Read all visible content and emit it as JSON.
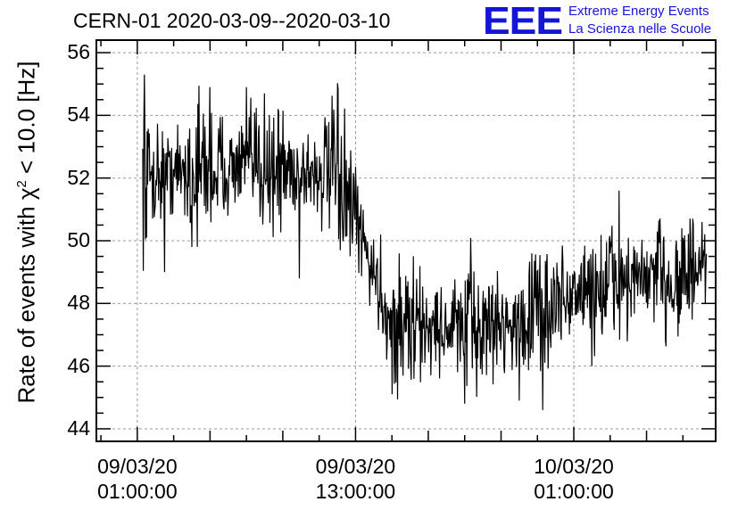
{
  "header": {
    "title": "CERN-01 2020-03-09--2020-03-10",
    "logo_text": "EEE",
    "logo_line1": "Extreme Energy Events",
    "logo_line2": "La Scienza nelle Scuole",
    "brand_color": "#1515d8"
  },
  "chart_data": {
    "type": "line",
    "ylabel_main": "Rate of events with χ",
    "ylabel_sup": "2",
    "ylabel_tail": " < 10.0 [Hz]",
    "ylim": [
      43.6,
      56.4
    ],
    "yticks": [
      "44",
      "46",
      "48",
      "50",
      "52",
      "54",
      "56"
    ],
    "x_unit": "hours since 2020-03-09 00:00:00",
    "xlim": [
      -1.25,
      32.8
    ],
    "xticks": [
      {
        "x": 1,
        "date": "09/03/20",
        "time": "01:00:00"
      },
      {
        "x": 13,
        "date": "09/03/20",
        "time": "13:00:00"
      },
      {
        "x": 25,
        "date": "10/03/20",
        "time": "01:00:00"
      }
    ],
    "grid": true,
    "series": [
      {
        "color": "#000000",
        "x_start": 1.3,
        "x_step": 0.25,
        "trend": [
          [
            1.3,
            52.1
          ],
          [
            7,
            52.4
          ],
          [
            12,
            52.1
          ],
          [
            13.5,
            49.8
          ],
          [
            15,
            47.3
          ],
          [
            18,
            47.2
          ],
          [
            22,
            47.4
          ],
          [
            25,
            48.3
          ],
          [
            28,
            48.7
          ],
          [
            32.3,
            49.0
          ]
        ],
        "dips": [
          [
            1.5,
            50.1
          ],
          [
            2.5,
            49.0
          ],
          [
            4,
            49.8
          ],
          [
            9.9,
            48.8
          ],
          [
            15,
            45.1
          ],
          [
            19,
            44.8
          ],
          [
            22,
            44.9
          ],
          [
            23.3,
            44.6
          ],
          [
            26,
            46.0
          ]
        ],
        "peaks": [
          [
            1.4,
            55.3
          ],
          [
            5,
            54.9
          ],
          [
            7,
            54.9
          ],
          [
            8,
            54.7
          ],
          [
            27.5,
            51.6
          ]
        ]
      }
    ]
  }
}
